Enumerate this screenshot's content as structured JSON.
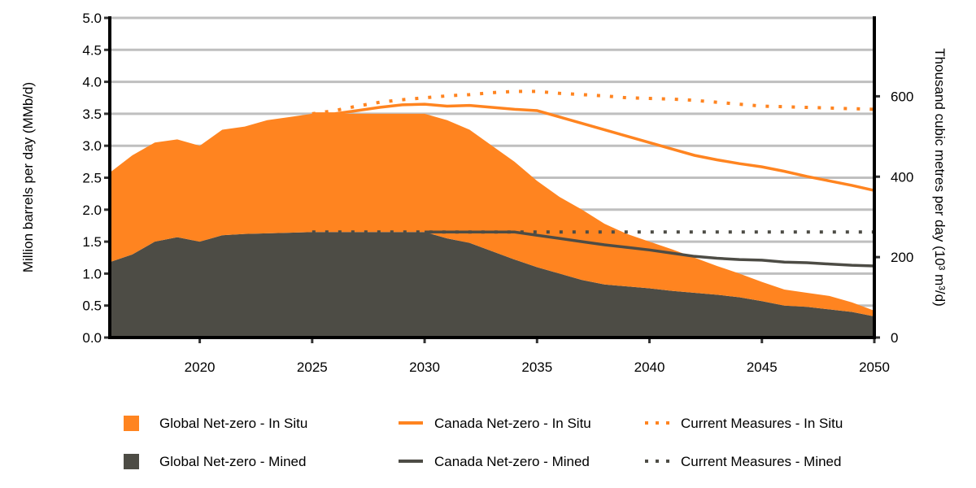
{
  "chart_data": {
    "type": "area",
    "title": "",
    "xlabel": "",
    "ylabel": "Million barrels per day (MMb/d)",
    "ylabel_right": "Thousand cubic metres per day (10³ m³/d)",
    "xlim": [
      2016,
      2050
    ],
    "ylim": [
      0,
      5.0
    ],
    "ylim_right": [
      0,
      795
    ],
    "x_ticks": [
      "2020",
      "2025",
      "2030",
      "2035",
      "2040",
      "2045",
      "2050"
    ],
    "y_ticks": [
      "0.0",
      "0.5",
      "1.0",
      "1.5",
      "2.0",
      "2.5",
      "3.0",
      "3.5",
      "4.0",
      "4.5",
      "5.0"
    ],
    "y_ticks_right": [
      "0",
      "200",
      "400",
      "600"
    ],
    "grid": "horizontal",
    "legend_placement": "bottom",
    "colors": {
      "in_situ": "#FF8420",
      "mined": "#4D4C45",
      "grid": "#BFBFBF"
    },
    "x": [
      2016,
      2017,
      2018,
      2019,
      2020,
      2021,
      2022,
      2023,
      2024,
      2025,
      2026,
      2027,
      2028,
      2029,
      2030,
      2031,
      2032,
      2033,
      2034,
      2035,
      2036,
      2037,
      2038,
      2039,
      2040,
      2041,
      2042,
      2043,
      2044,
      2045,
      2046,
      2047,
      2048,
      2049,
      2050
    ],
    "areas": [
      {
        "name": "Global Net-zero - Mined",
        "stacked": true,
        "color": "#4D4C45",
        "values": [
          1.18,
          1.3,
          1.5,
          1.57,
          1.5,
          1.6,
          1.62,
          1.63,
          1.64,
          1.65,
          1.65,
          1.65,
          1.65,
          1.65,
          1.65,
          1.55,
          1.48,
          1.35,
          1.22,
          1.1,
          1.0,
          0.9,
          0.83,
          0.8,
          0.77,
          0.73,
          0.7,
          0.67,
          0.63,
          0.57,
          0.5,
          0.48,
          0.44,
          0.4,
          0.33
        ]
      },
      {
        "name": "Global Net-zero - In Situ",
        "stacked": true,
        "color": "#FF8420",
        "values": [
          1.4,
          1.55,
          1.55,
          1.53,
          1.5,
          1.65,
          1.68,
          1.77,
          1.81,
          1.85,
          1.85,
          1.85,
          1.85,
          1.85,
          1.85,
          1.85,
          1.77,
          1.65,
          1.53,
          1.35,
          1.2,
          1.1,
          0.95,
          0.82,
          0.73,
          0.65,
          0.55,
          0.45,
          0.37,
          0.3,
          0.25,
          0.22,
          0.21,
          0.15,
          0.09
        ]
      }
    ],
    "lines": [
      {
        "name": "Canada Net-zero - In Situ",
        "style": "solid",
        "color": "#FF8420",
        "x": [
          2025,
          2026,
          2027,
          2028,
          2029,
          2030,
          2031,
          2032,
          2033,
          2034,
          2035,
          2036,
          2037,
          2038,
          2039,
          2040,
          2041,
          2042,
          2043,
          2044,
          2045,
          2046,
          2047,
          2048,
          2049,
          2050
        ],
        "values": [
          3.5,
          3.5,
          3.55,
          3.6,
          3.64,
          3.65,
          3.62,
          3.63,
          3.6,
          3.57,
          3.55,
          3.45,
          3.35,
          3.25,
          3.15,
          3.05,
          2.95,
          2.85,
          2.78,
          2.72,
          2.67,
          2.6,
          2.52,
          2.45,
          2.38,
          2.3
        ]
      },
      {
        "name": "Canada Net-zero - Mined",
        "style": "solid",
        "color": "#4D4C45",
        "x": [
          2030,
          2031,
          2032,
          2033,
          2034,
          2035,
          2036,
          2037,
          2038,
          2039,
          2040,
          2041,
          2042,
          2043,
          2044,
          2045,
          2046,
          2047,
          2048,
          2049,
          2050
        ],
        "values": [
          1.65,
          1.65,
          1.65,
          1.65,
          1.65,
          1.6,
          1.55,
          1.5,
          1.45,
          1.41,
          1.37,
          1.32,
          1.27,
          1.24,
          1.22,
          1.21,
          1.18,
          1.17,
          1.15,
          1.13,
          1.12
        ]
      },
      {
        "name": "Current Measures - In Situ",
        "style": "dotted",
        "color": "#FF8420",
        "x": [
          2025,
          2026,
          2027,
          2028,
          2029,
          2030,
          2031,
          2032,
          2033,
          2034,
          2035,
          2036,
          2037,
          2038,
          2039,
          2040,
          2041,
          2042,
          2043,
          2044,
          2045,
          2046,
          2047,
          2048,
          2049,
          2050
        ],
        "values": [
          3.5,
          3.55,
          3.62,
          3.68,
          3.72,
          3.75,
          3.78,
          3.8,
          3.83,
          3.85,
          3.85,
          3.82,
          3.8,
          3.78,
          3.75,
          3.74,
          3.73,
          3.71,
          3.68,
          3.65,
          3.62,
          3.61,
          3.6,
          3.59,
          3.58,
          3.57
        ]
      },
      {
        "name": "Current Measures - Mined",
        "style": "dotted",
        "color": "#4D4C45",
        "x": [
          2025,
          2030,
          2035,
          2040,
          2045,
          2050
        ],
        "values": [
          1.65,
          1.65,
          1.65,
          1.65,
          1.65,
          1.65
        ]
      }
    ],
    "legend": [
      {
        "label": "Global Net-zero - In Situ",
        "kind": "area",
        "color": "#FF8420"
      },
      {
        "label": "Canada Net-zero - In Situ",
        "kind": "solid",
        "color": "#FF8420"
      },
      {
        "label": "Current Measures - In Situ",
        "kind": "dotted",
        "color": "#FF8420"
      },
      {
        "label": "Global Net-zero - Mined",
        "kind": "area",
        "color": "#4D4C45"
      },
      {
        "label": "Canada Net-zero - Mined",
        "kind": "solid",
        "color": "#4D4C45"
      },
      {
        "label": "Current Measures - Mined",
        "kind": "dotted",
        "color": "#4D4C45"
      }
    ]
  }
}
